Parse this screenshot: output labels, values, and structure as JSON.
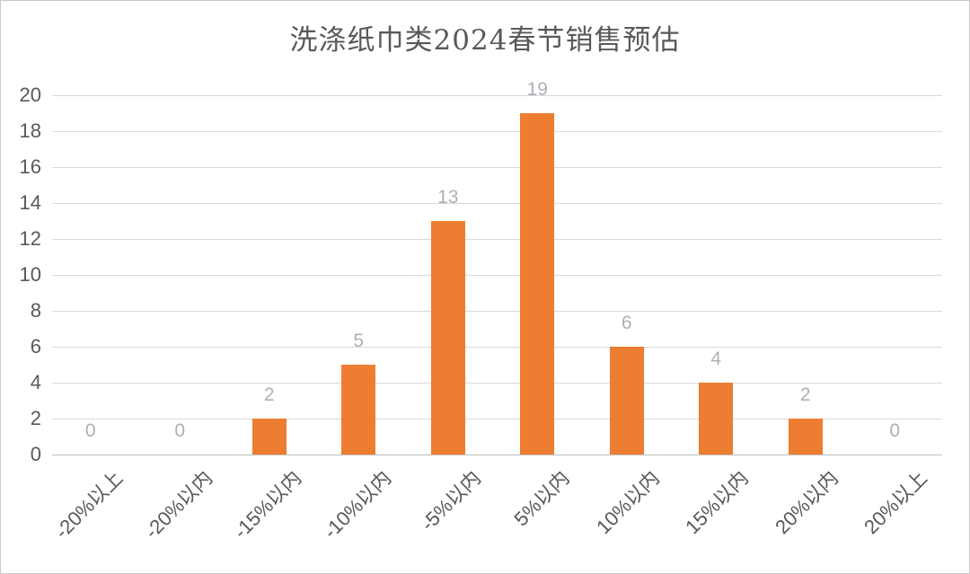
{
  "page": {
    "background": "#FFFFFF",
    "border_color": "#C9C9C9"
  },
  "chart_data": {
    "type": "bar",
    "title": "洗涤纸巾类2024春节销售预估",
    "categories": [
      "-20%以上",
      "-20%以内",
      "-15%以内",
      "-10%以内",
      "-5%以内",
      "5%以内",
      "10%以内",
      "15%以内",
      "20%以内",
      "20%以上"
    ],
    "values": [
      0,
      0,
      2,
      5,
      13,
      19,
      6,
      4,
      2,
      0
    ],
    "data_labels": [
      "0",
      "0",
      "2",
      "5",
      "13",
      "19",
      "6",
      "4",
      "2",
      "0"
    ],
    "xlabel": "",
    "ylabel": "",
    "ylim": [
      0,
      20
    ],
    "ytick_step": 2,
    "yticks": [
      0,
      2,
      4,
      6,
      8,
      10,
      12,
      14,
      16,
      18,
      20
    ],
    "grid": true,
    "legend": false,
    "bar_color": "#ED7D31",
    "data_label_color": "#ABB0B8",
    "axis_label_color": "#595959",
    "gridline_color": "#D9D9D9",
    "baseline_color": "#BFBFBF",
    "title_color": "#595959"
  }
}
